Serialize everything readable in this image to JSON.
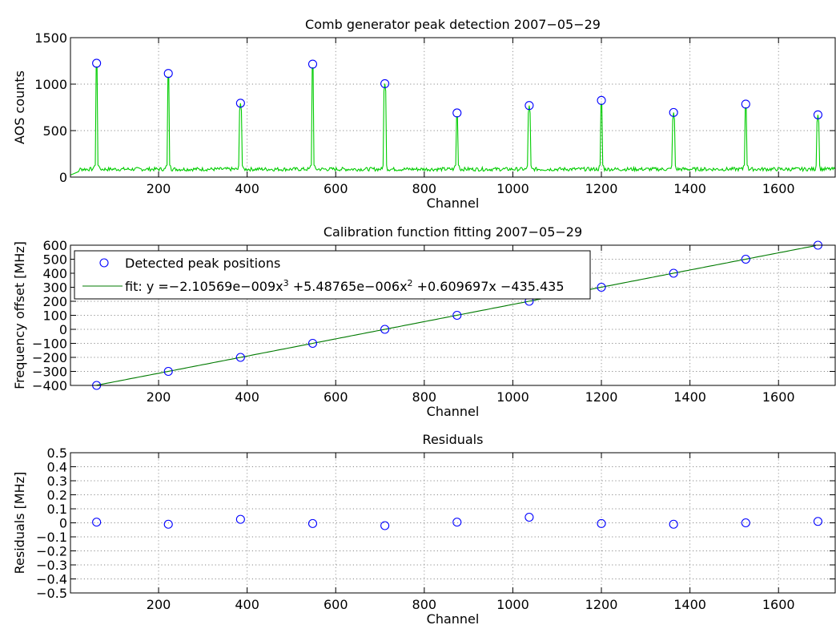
{
  "chart_data": [
    {
      "type": "line",
      "title": "Comb generator peak detection 2007−05−29",
      "xlabel": "Channel",
      "ylabel": "AOS counts",
      "xlim": [
        1,
        1728
      ],
      "ylim": [
        0,
        1500
      ],
      "xticks": [
        200,
        400,
        600,
        800,
        1000,
        1200,
        1400,
        1600
      ],
      "xtick_labels": [
        "200",
        "400",
        "600",
        "800",
        "1000",
        "1200",
        "1400",
        "1600"
      ],
      "yticks": [
        0,
        500,
        1000,
        1500
      ],
      "ytick_labels": [
        "0",
        "500",
        "1000",
        "1500"
      ],
      "grid": true,
      "spectrum_color": "#00cc00",
      "marker_color": "#0000ff",
      "baseline": 85,
      "peaks_x": [
        60,
        222,
        385,
        548,
        711,
        874,
        1037,
        1200,
        1363,
        1526,
        1689
      ],
      "peaks_y": [
        1225,
        1115,
        795,
        1215,
        1005,
        690,
        770,
        825,
        695,
        785,
        670
      ]
    },
    {
      "type": "scatter",
      "title": "Calibration function fitting 2007−05−29",
      "xlabel": "Channel",
      "ylabel": "Frequency offset [MHz]",
      "xlim": [
        1,
        1728
      ],
      "ylim": [
        -400,
        600
      ],
      "xticks": [
        200,
        400,
        600,
        800,
        1000,
        1200,
        1400,
        1600
      ],
      "xtick_labels": [
        "200",
        "400",
        "600",
        "800",
        "1000",
        "1200",
        "1400",
        "1600"
      ],
      "yticks": [
        -400,
        -300,
        -200,
        -100,
        0,
        100,
        200,
        300,
        400,
        500,
        600
      ],
      "ytick_labels": [
        "−400",
        "−300",
        "−200",
        "−100",
        "0",
        "100",
        "200",
        "300",
        "400",
        "500",
        "600"
      ],
      "grid": true,
      "legend_position": "top-left",
      "series": [
        {
          "name": "Detected peak positions",
          "x": [
            60,
            222,
            385,
            548,
            711,
            874,
            1037,
            1200,
            1363,
            1526,
            1689
          ],
          "y": [
            -400,
            -300,
            -200,
            -100,
            0,
            100,
            200,
            300,
            400,
            500,
            600
          ]
        }
      ],
      "fit": {
        "label_prefix": "fit: y =−2.10569e−009x",
        "exp3": "3",
        "label_mid": " +5.48765e−006x",
        "exp2": "2",
        "label_suffix": " +0.609697x −435.435",
        "coefficients": [
          -2.10569e-09,
          5.48765e-06,
          0.609697,
          -435.435
        ],
        "x_range": [
          60,
          1689
        ],
        "color": "#007a00"
      }
    },
    {
      "type": "scatter",
      "title": "Residuals",
      "xlabel": "Channel",
      "ylabel": "Residuals [MHz]",
      "xlim": [
        1,
        1728
      ],
      "ylim": [
        -0.5,
        0.5
      ],
      "xticks": [
        200,
        400,
        600,
        800,
        1000,
        1200,
        1400,
        1600
      ],
      "xtick_labels": [
        "200",
        "400",
        "600",
        "800",
        "1000",
        "1200",
        "1400",
        "1600"
      ],
      "yticks": [
        -0.5,
        -0.4,
        -0.3,
        -0.2,
        -0.1,
        0,
        0.1,
        0.2,
        0.3,
        0.4,
        0.5
      ],
      "ytick_labels": [
        "−0.5",
        "−0.4",
        "−0.3",
        "−0.2",
        "−0.1",
        "0",
        "0.1",
        "0.2",
        "0.3",
        "0.4",
        "0.5"
      ],
      "grid": true,
      "series": [
        {
          "x": [
            60,
            222,
            385,
            548,
            711,
            874,
            1037,
            1200,
            1363,
            1526,
            1689
          ],
          "y": [
            0.005,
            -0.01,
            0.025,
            -0.005,
            -0.02,
            0.005,
            0.04,
            -0.005,
            -0.01,
            0.0,
            0.01
          ]
        }
      ]
    }
  ]
}
